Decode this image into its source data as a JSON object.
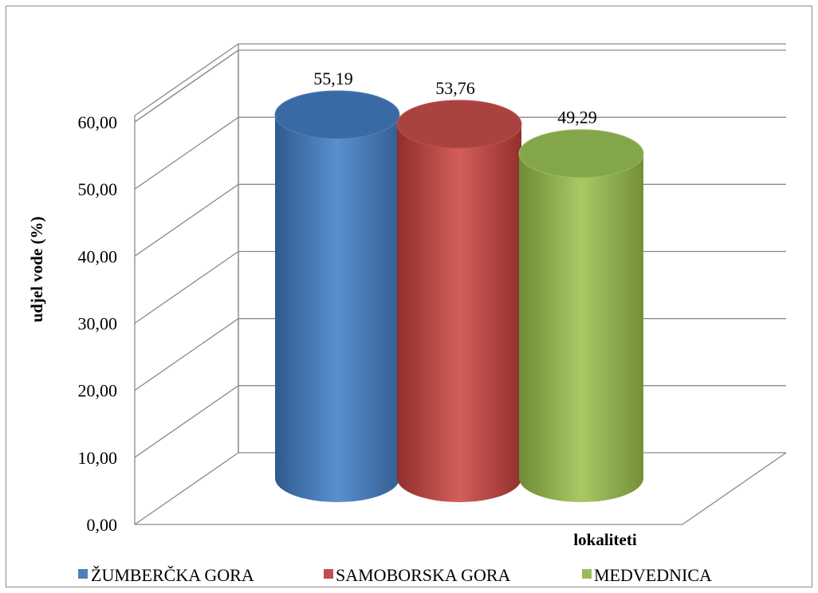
{
  "chart_data": {
    "type": "bar",
    "subtype": "3d-cylinder",
    "title": "",
    "ylabel": "udjel vode (%)",
    "xlabel": "lokaliteti",
    "ylim": [
      0,
      60
    ],
    "y_ticks": [
      "0,00",
      "10,00",
      "20,00",
      "30,00",
      "40,00",
      "50,00",
      "60,00"
    ],
    "grid": true,
    "legend_position": "bottom",
    "categories": [
      "ŽUMBERČKA GORA",
      "SAMOBORSKA GORA",
      "MEDVEDNICA"
    ],
    "values": [
      55.19,
      53.76,
      49.29
    ],
    "value_labels": [
      "55,19",
      "53,76",
      "49,29"
    ],
    "colors": [
      "#4f81bd",
      "#c0504d",
      "#9bbb59"
    ]
  }
}
